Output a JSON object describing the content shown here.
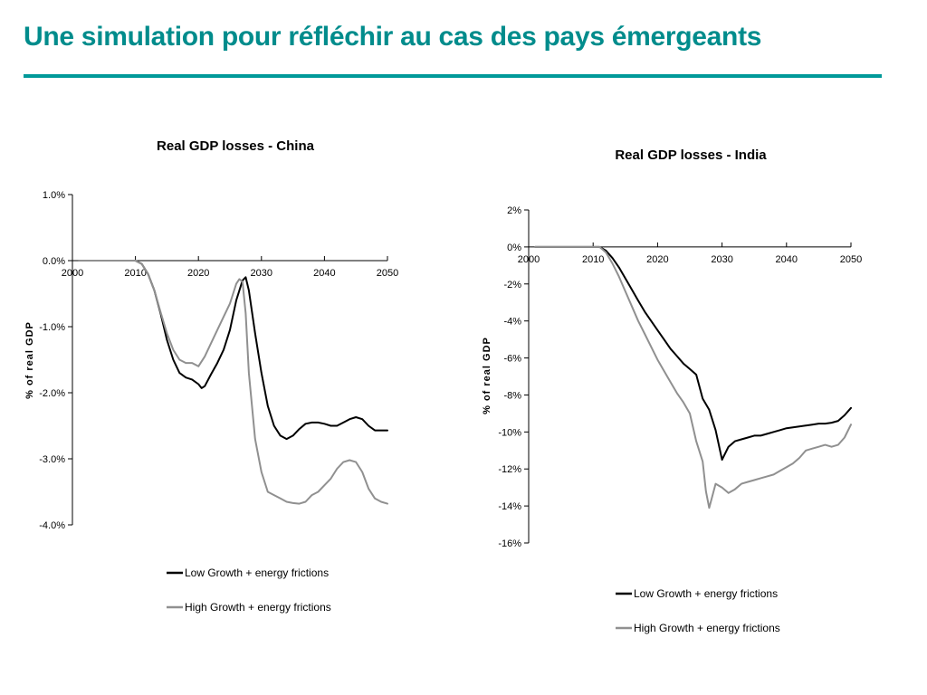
{
  "slide": {
    "title": "Une simulation pour réfléchir au cas des pays émergeants",
    "accent_color": "#008C8C"
  },
  "chart_data": [
    {
      "type": "line",
      "title": "Real GDP losses - China",
      "ylabel": "% of real GDP",
      "xlabel": "",
      "xlim": [
        2000,
        2050
      ],
      "ylim": [
        -4.0,
        1.0
      ],
      "xticks": [
        2000,
        2010,
        2020,
        2030,
        2040,
        2050
      ],
      "xtick_labels": [
        "2000",
        "2010",
        "2020",
        "2030",
        "2040",
        "2050"
      ],
      "yticks": [
        1.0,
        0.0,
        -1.0,
        -2.0,
        -3.0,
        -4.0
      ],
      "ytick_labels": [
        "1.0%",
        "0.0%",
        "-1.0%",
        "-2.0%",
        "-3.0%",
        "-4.0%"
      ],
      "grid": false,
      "legend_position": "bottom",
      "series": [
        {
          "name": "Low Growth + energy frictions",
          "color": "#000000",
          "points": [
            [
              2001,
              0
            ],
            [
              2010,
              0
            ],
            [
              2011,
              -0.05
            ],
            [
              2012,
              -0.2
            ],
            [
              2013,
              -0.45
            ],
            [
              2014,
              -0.8
            ],
            [
              2015,
              -1.2
            ],
            [
              2016,
              -1.5
            ],
            [
              2017,
              -1.7
            ],
            [
              2018,
              -1.77
            ],
            [
              2019,
              -1.8
            ],
            [
              2020,
              -1.87
            ],
            [
              2020.5,
              -1.93
            ],
            [
              2021,
              -1.9
            ],
            [
              2022,
              -1.72
            ],
            [
              2023,
              -1.55
            ],
            [
              2024,
              -1.35
            ],
            [
              2025,
              -1.05
            ],
            [
              2026,
              -0.6
            ],
            [
              2027,
              -0.3
            ],
            [
              2027.5,
              -0.25
            ],
            [
              2028,
              -0.45
            ],
            [
              2029,
              -1.1
            ],
            [
              2030,
              -1.7
            ],
            [
              2031,
              -2.2
            ],
            [
              2032,
              -2.5
            ],
            [
              2033,
              -2.65
            ],
            [
              2034,
              -2.7
            ],
            [
              2035,
              -2.65
            ],
            [
              2036,
              -2.55
            ],
            [
              2037,
              -2.47
            ],
            [
              2038,
              -2.45
            ],
            [
              2039,
              -2.45
            ],
            [
              2040,
              -2.47
            ],
            [
              2041,
              -2.5
            ],
            [
              2042,
              -2.5
            ],
            [
              2043,
              -2.45
            ],
            [
              2044,
              -2.4
            ],
            [
              2045,
              -2.37
            ],
            [
              2046,
              -2.4
            ],
            [
              2047,
              -2.5
            ],
            [
              2048,
              -2.57
            ],
            [
              2050,
              -2.57
            ]
          ]
        },
        {
          "name": "High Growth + energy frictions",
          "color": "#909090",
          "points": [
            [
              2001,
              0
            ],
            [
              2010,
              0
            ],
            [
              2011,
              -0.05
            ],
            [
              2012,
              -0.2
            ],
            [
              2013,
              -0.45
            ],
            [
              2014,
              -0.78
            ],
            [
              2015,
              -1.1
            ],
            [
              2016,
              -1.35
            ],
            [
              2017,
              -1.5
            ],
            [
              2018,
              -1.55
            ],
            [
              2019,
              -1.55
            ],
            [
              2020,
              -1.6
            ],
            [
              2021,
              -1.45
            ],
            [
              2022,
              -1.25
            ],
            [
              2023,
              -1.05
            ],
            [
              2024,
              -0.85
            ],
            [
              2025,
              -0.65
            ],
            [
              2026,
              -0.35
            ],
            [
              2026.5,
              -0.28
            ],
            [
              2027,
              -0.32
            ],
            [
              2027.5,
              -0.8
            ],
            [
              2028,
              -1.7
            ],
            [
              2029,
              -2.7
            ],
            [
              2030,
              -3.2
            ],
            [
              2031,
              -3.5
            ],
            [
              2032,
              -3.55
            ],
            [
              2033,
              -3.6
            ],
            [
              2034,
              -3.65
            ],
            [
              2035,
              -3.67
            ],
            [
              2036,
              -3.68
            ],
            [
              2037,
              -3.65
            ],
            [
              2038,
              -3.55
            ],
            [
              2039,
              -3.5
            ],
            [
              2040,
              -3.4
            ],
            [
              2041,
              -3.3
            ],
            [
              2042,
              -3.15
            ],
            [
              2043,
              -3.05
            ],
            [
              2044,
              -3.02
            ],
            [
              2045,
              -3.05
            ],
            [
              2046,
              -3.2
            ],
            [
              2047,
              -3.45
            ],
            [
              2048,
              -3.6
            ],
            [
              2049,
              -3.65
            ],
            [
              2050,
              -3.68
            ]
          ]
        }
      ]
    },
    {
      "type": "line",
      "title": "Real GDP losses - India",
      "ylabel": "% of real GDP",
      "xlabel": "",
      "xlim": [
        2000,
        2050
      ],
      "ylim": [
        -16,
        2
      ],
      "xticks": [
        2000,
        2010,
        2020,
        2030,
        2040,
        2050
      ],
      "xtick_labels": [
        "2000",
        "2010",
        "2020",
        "2030",
        "2040",
        "2050"
      ],
      "yticks": [
        2,
        0,
        -2,
        -4,
        -6,
        -8,
        -10,
        -12,
        -14,
        -16
      ],
      "ytick_labels": [
        "2%",
        "0%",
        "-2%",
        "-4%",
        "-6%",
        "-8%",
        "-10%",
        "-12%",
        "-14%",
        "-16%"
      ],
      "grid": false,
      "legend_position": "bottom",
      "series": [
        {
          "name": "Low Growth + energy frictions",
          "color": "#000000",
          "points": [
            [
              2001,
              0
            ],
            [
              2011,
              0
            ],
            [
              2012,
              -0.2
            ],
            [
              2013,
              -0.6
            ],
            [
              2014,
              -1.1
            ],
            [
              2015,
              -1.7
            ],
            [
              2016,
              -2.3
            ],
            [
              2017,
              -2.9
            ],
            [
              2018,
              -3.5
            ],
            [
              2019,
              -4.0
            ],
            [
              2020,
              -4.5
            ],
            [
              2021,
              -5.0
            ],
            [
              2022,
              -5.5
            ],
            [
              2023,
              -5.9
            ],
            [
              2024,
              -6.3
            ],
            [
              2025,
              -6.6
            ],
            [
              2026,
              -6.9
            ],
            [
              2027,
              -8.2
            ],
            [
              2028,
              -8.8
            ],
            [
              2029,
              -9.9
            ],
            [
              2030,
              -11.5
            ],
            [
              2031,
              -10.8
            ],
            [
              2032,
              -10.5
            ],
            [
              2033,
              -10.4
            ],
            [
              2034,
              -10.3
            ],
            [
              2035,
              -10.2
            ],
            [
              2036,
              -10.2
            ],
            [
              2037,
              -10.1
            ],
            [
              2038,
              -10.0
            ],
            [
              2039,
              -9.9
            ],
            [
              2040,
              -9.8
            ],
            [
              2041,
              -9.75
            ],
            [
              2042,
              -9.7
            ],
            [
              2043,
              -9.65
            ],
            [
              2044,
              -9.6
            ],
            [
              2045,
              -9.55
            ],
            [
              2046,
              -9.55
            ],
            [
              2047,
              -9.5
            ],
            [
              2048,
              -9.4
            ],
            [
              2049,
              -9.1
            ],
            [
              2050,
              -8.7
            ]
          ]
        },
        {
          "name": "High Growth + energy frictions",
          "color": "#909090",
          "points": [
            [
              2001,
              0
            ],
            [
              2011,
              0
            ],
            [
              2012,
              -0.3
            ],
            [
              2013,
              -0.9
            ],
            [
              2014,
              -1.6
            ],
            [
              2015,
              -2.4
            ],
            [
              2016,
              -3.2
            ],
            [
              2017,
              -4.0
            ],
            [
              2018,
              -4.7
            ],
            [
              2019,
              -5.4
            ],
            [
              2020,
              -6.1
            ],
            [
              2021,
              -6.7
            ],
            [
              2022,
              -7.3
            ],
            [
              2023,
              -7.9
            ],
            [
              2024,
              -8.4
            ],
            [
              2025,
              -9.0
            ],
            [
              2026,
              -10.5
            ],
            [
              2027,
              -11.6
            ],
            [
              2027.5,
              -13.2
            ],
            [
              2028,
              -14.1
            ],
            [
              2029,
              -12.8
            ],
            [
              2030,
              -13.0
            ],
            [
              2031,
              -13.3
            ],
            [
              2032,
              -13.1
            ],
            [
              2033,
              -12.8
            ],
            [
              2034,
              -12.7
            ],
            [
              2035,
              -12.6
            ],
            [
              2036,
              -12.5
            ],
            [
              2037,
              -12.4
            ],
            [
              2038,
              -12.3
            ],
            [
              2039,
              -12.1
            ],
            [
              2040,
              -11.9
            ],
            [
              2041,
              -11.7
            ],
            [
              2042,
              -11.4
            ],
            [
              2043,
              -11.0
            ],
            [
              2044,
              -10.9
            ],
            [
              2045,
              -10.8
            ],
            [
              2046,
              -10.7
            ],
            [
              2047,
              -10.8
            ],
            [
              2048,
              -10.7
            ],
            [
              2049,
              -10.3
            ],
            [
              2050,
              -9.6
            ]
          ]
        }
      ]
    }
  ]
}
